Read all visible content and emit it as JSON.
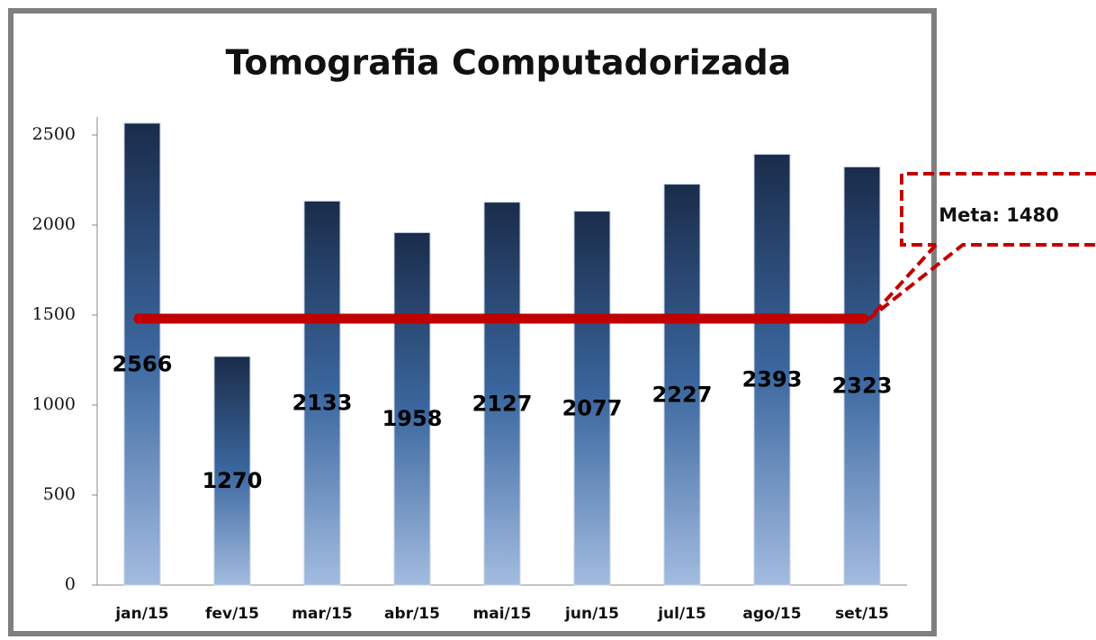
{
  "chart_data": {
    "type": "bar",
    "title": "Tomografia Computadorizada",
    "categories": [
      "jan/15",
      "fev/15",
      "mar/15",
      "abr/15",
      "mai/15",
      "jun/15",
      "jul/15",
      "ago/15",
      "set/15"
    ],
    "values": [
      2566,
      1270,
      2133,
      1958,
      2127,
      2077,
      2227,
      2393,
      2323
    ],
    "color": "#2f5a94",
    "ylim": [
      0,
      2600
    ],
    "yticks": [
      0,
      500,
      1000,
      1500,
      2000,
      2500
    ],
    "target": {
      "value": 1480,
      "label": "Meta: 1480",
      "color": "#c00000"
    }
  }
}
